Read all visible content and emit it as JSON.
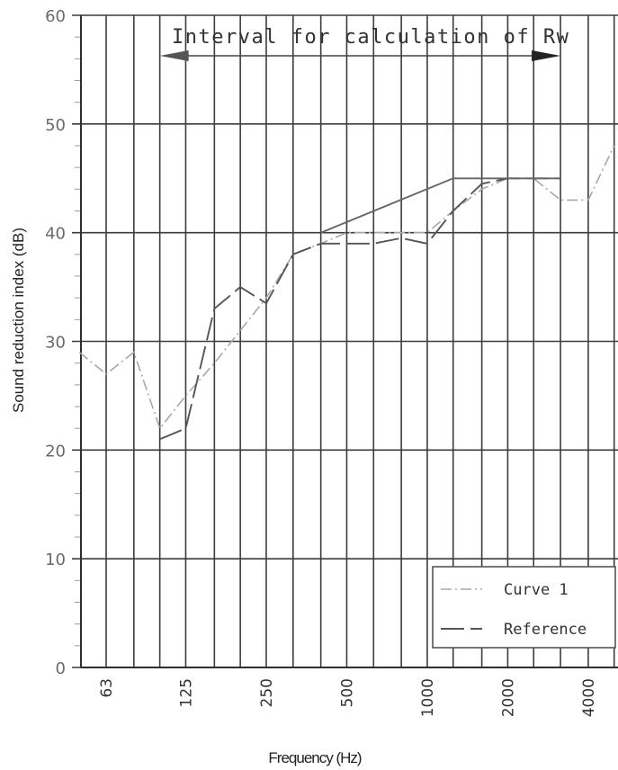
{
  "chart_data": {
    "type": "line",
    "xlabel": "Frequency (Hz)",
    "ylabel": "Sound reduction index (dB)",
    "ylim": [
      0,
      60
    ],
    "yticks": [
      "0",
      "10",
      "20",
      "30",
      "40",
      "50",
      "60"
    ],
    "ytick_values": [
      0,
      10,
      20,
      30,
      40,
      50,
      60
    ],
    "x_scale": "log (1/3-octave bands)",
    "xtick_labels": [
      "63",
      "125",
      "250",
      "500",
      "1000",
      "2000",
      "4000"
    ],
    "xtick_values": [
      63,
      125,
      250,
      500,
      1000,
      2000,
      4000
    ],
    "x_bands": [
      50,
      63,
      80,
      100,
      125,
      160,
      200,
      250,
      315,
      400,
      500,
      630,
      800,
      1000,
      1250,
      1600,
      2000,
      2500,
      3150,
      4000,
      5000
    ],
    "grid": true,
    "legend_position": "bottom-right",
    "annotation": {
      "text": "Interval for calculation of Rw",
      "from": 100,
      "to": 3150
    },
    "series": [
      {
        "name": "Curve 1",
        "color": "#a8a8a8",
        "style": "dash-dot",
        "x": [
          50,
          63,
          80,
          100,
          125,
          160,
          200,
          250,
          315,
          400,
          500,
          630,
          800,
          1000,
          1250,
          1600,
          2000,
          2500,
          3150,
          4000,
          5000
        ],
        "y": [
          29,
          27,
          29,
          22,
          25,
          28,
          31,
          34,
          38,
          39,
          40,
          40,
          40,
          40,
          42,
          44,
          45,
          45,
          43,
          43,
          48
        ]
      },
      {
        "name": "Reference",
        "color": "#555555",
        "style": "dashed",
        "x": [
          100,
          125,
          160,
          200,
          250,
          315,
          400,
          500,
          630,
          800,
          1000,
          1250,
          1600,
          2000,
          2500,
          3150
        ],
        "y": [
          21,
          22,
          33,
          35,
          33.5,
          38,
          39,
          39,
          39,
          39.5,
          39,
          42,
          44.5,
          45,
          45,
          45
        ]
      },
      {
        "name": "",
        "color": "#666666",
        "style": "solid",
        "x": [
          400,
          1250,
          3150
        ],
        "y": [
          40,
          45,
          45
        ]
      }
    ]
  }
}
